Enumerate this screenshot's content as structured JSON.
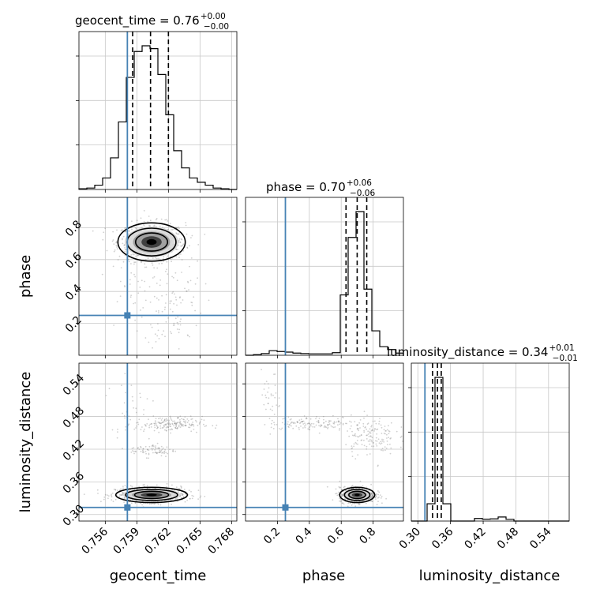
{
  "chart_data": {
    "type": "corner",
    "parameters": [
      "geocent_time",
      "phase",
      "luminosity_distance"
    ],
    "truths": {
      "geocent_time": 0.7581,
      "phase": 0.25,
      "luminosity_distance": 0.313
    },
    "titles": [
      {
        "param": "geocent_time",
        "text": "geocent_time = 0.76",
        "plus": "+0.00",
        "minus": "−0.00"
      },
      {
        "param": "phase",
        "text": "phase = 0.70",
        "plus": "+0.06",
        "minus": "−0.06"
      },
      {
        "param": "luminosity_distance",
        "text": "luminosity_distance = 0.34",
        "plus": "+0.01",
        "minus": "−0.01"
      }
    ],
    "axes": {
      "geocent_time": {
        "range": [
          0.7535,
          0.7685
        ],
        "ticks": [
          "0.756",
          "0.759",
          "0.762",
          "0.765",
          "0.768"
        ]
      },
      "phase": {
        "range": [
          0.0,
          0.99
        ],
        "ticks_x": [
          "0.2",
          "0.4",
          "0.6",
          "0.8"
        ],
        "ticks_y": [
          "0.2",
          "0.4",
          "0.6",
          "0.8"
        ]
      },
      "luminosity_distance": {
        "range": [
          0.288,
          0.578
        ],
        "ticks": [
          "0.30",
          "0.36",
          "0.42",
          "0.48",
          "0.54"
        ]
      }
    },
    "xlabels": [
      "geocent_time",
      "phase",
      "luminosity_distance"
    ],
    "ylabels": [
      "phase",
      "luminosity_distance"
    ],
    "histograms": {
      "geocent_time": {
        "edges": [
          0.7535,
          0.75425,
          0.755,
          0.75575,
          0.7565,
          0.75725,
          0.758,
          0.75875,
          0.7595,
          0.76025,
          0.761,
          0.76175,
          0.7625,
          0.76325,
          0.764,
          0.76475,
          0.7655,
          0.76625,
          0.767,
          0.76775,
          0.7685
        ],
        "counts": [
          0.5,
          1,
          3,
          8,
          22,
          47,
          78,
          96,
          100,
          98,
          80,
          52,
          27,
          15,
          8,
          5,
          3,
          1,
          0.5,
          0
        ],
        "quantiles": [
          0.7586,
          0.7603,
          0.762
        ]
      },
      "phase": {
        "edges": [
          0.0,
          0.0495,
          0.099,
          0.1485,
          0.198,
          0.2475,
          0.297,
          0.3465,
          0.396,
          0.4455,
          0.495,
          0.5445,
          0.594,
          0.6435,
          0.693,
          0.7425,
          0.792,
          0.8415,
          0.891,
          0.9405,
          0.99
        ],
        "counts": [
          0,
          0.4,
          1.2,
          3.2,
          2.6,
          2.2,
          1.5,
          1.2,
          1.0,
          1.0,
          1.0,
          1.8,
          42,
          82,
          100,
          46,
          17,
          6,
          4,
          1.5
        ],
        "quantiles": [
          0.63,
          0.7,
          0.76
        ]
      },
      "luminosity_distance": {
        "edges": [
          0.288,
          0.3025,
          0.317,
          0.3315,
          0.346,
          0.3605,
          0.375,
          0.3895,
          0.404,
          0.4185,
          0.433,
          0.4475,
          0.462,
          0.4765,
          0.491,
          0.5055,
          0.52,
          0.5345,
          0.549,
          0.5635,
          0.578
        ],
        "counts": [
          0,
          0,
          12,
          100,
          12,
          0,
          0,
          0,
          1.8,
          1.3,
          1.5,
          2.8,
          1.2,
          0,
          0,
          0,
          0,
          0,
          0,
          0
        ],
        "quantiles": [
          0.327,
          0.336,
          0.343
        ]
      }
    },
    "scatter_clusters": {
      "geocent_time_vs_phase": [
        {
          "cx": 0.7604,
          "cy": 0.71,
          "sx": 0.0016,
          "sy": 0.06,
          "n": 650
        },
        {
          "cx": 0.7625,
          "cy": 0.33,
          "sx": 0.0014,
          "sy": 0.15,
          "n": 90
        },
        {
          "cx": 0.759,
          "cy": 0.45,
          "sx": 0.0018,
          "sy": 0.18,
          "n": 60
        }
      ],
      "geocent_time_vs_luminosity_distance": [
        {
          "cx": 0.7604,
          "cy": 0.336,
          "sx": 0.0017,
          "sy": 0.007,
          "n": 650
        },
        {
          "cx": 0.762,
          "cy": 0.466,
          "sx": 0.0016,
          "sy": 0.007,
          "n": 190
        },
        {
          "cx": 0.7605,
          "cy": 0.418,
          "sx": 0.0011,
          "sy": 0.006,
          "n": 80
        },
        {
          "cx": 0.7585,
          "cy": 0.5,
          "sx": 0.0012,
          "sy": 0.035,
          "n": 30
        }
      ],
      "phase_vs_luminosity_distance": [
        {
          "cx": 0.7,
          "cy": 0.336,
          "sx": 0.055,
          "sy": 0.007,
          "n": 650
        },
        {
          "cx": 0.45,
          "cy": 0.468,
          "sx": 0.15,
          "sy": 0.006,
          "n": 140
        },
        {
          "cx": 0.78,
          "cy": 0.445,
          "sx": 0.08,
          "sy": 0.018,
          "n": 150
        },
        {
          "cx": 0.16,
          "cy": 0.5,
          "sx": 0.03,
          "sy": 0.03,
          "n": 35
        }
      ]
    },
    "colors": {
      "truth": "#4682b4",
      "hist": "#000000",
      "scatter": "#777777",
      "grid": "#c8c8c8"
    }
  }
}
